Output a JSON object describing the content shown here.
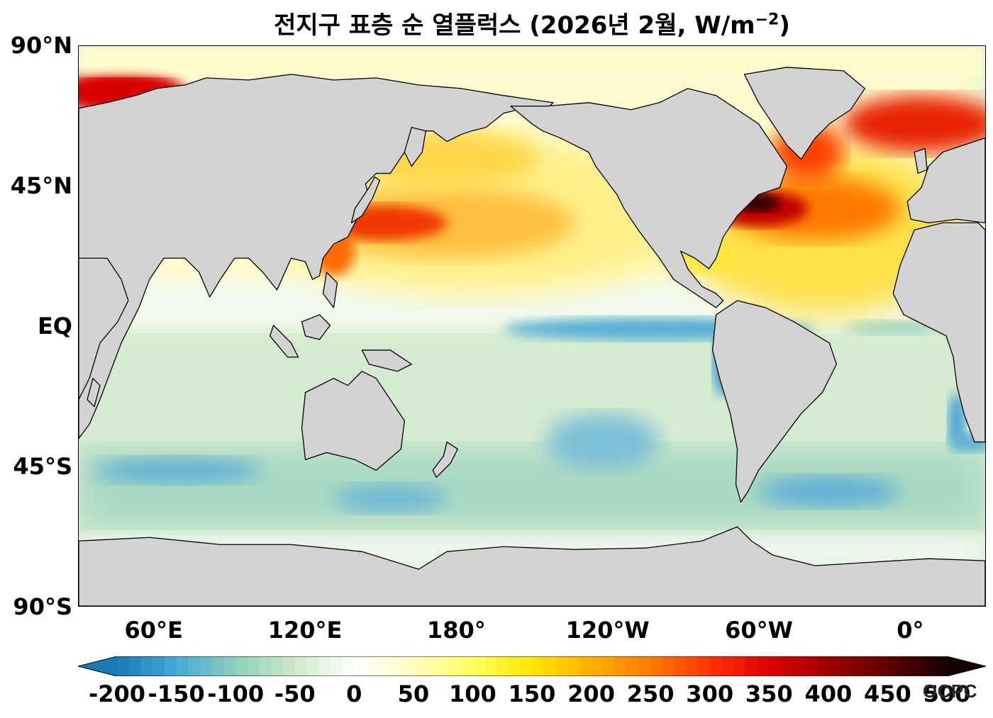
{
  "title": {
    "main": "전지구 표층 순 열플럭스 (2026년 2월, W/m",
    "superscript": "−2",
    "close": ")"
  },
  "map": {
    "projection": "equirectangular",
    "central_longitude": "160°E (Pacific-centered)",
    "land_color": "#d3d3d3",
    "coastline_color": "#000000"
  },
  "lat_ticks": [
    {
      "label": "90°N",
      "lat": 90
    },
    {
      "label": "45°N",
      "lat": 45
    },
    {
      "label": "EQ",
      "lat": 0
    },
    {
      "label": "45°S",
      "lat": -45
    },
    {
      "label": "90°S",
      "lat": -90
    }
  ],
  "lon_ticks": [
    {
      "label": "60°E",
      "lon": 60
    },
    {
      "label": "120°E",
      "lon": 120
    },
    {
      "label": "180°",
      "lon": 180
    },
    {
      "label": "120°W",
      "lon": 240
    },
    {
      "label": "60°W",
      "lon": 300
    },
    {
      "label": "0°",
      "lon": 360
    }
  ],
  "colorbar": {
    "min": -200,
    "max": 500,
    "extend": "both",
    "ticks": [
      -200,
      -150,
      -100,
      -50,
      0,
      50,
      100,
      150,
      200,
      250,
      300,
      350,
      400,
      450,
      500
    ],
    "tick_labels": [
      "-200",
      "-150",
      "-100",
      "-50",
      "0",
      "50",
      "100",
      "150",
      "200",
      "250",
      "300",
      "350",
      "400",
      "450",
      "500"
    ],
    "colors": {
      "-200": "#1a7ab6",
      "-150": "#46a9d4",
      "-100": "#8fcfbb",
      "-50": "#cfeac8",
      "0": "#ffffff",
      "50": "#fffcc0",
      "100": "#ffff60",
      "150": "#ffe600",
      "200": "#ffb000",
      "250": "#ff7a00",
      "300": "#ff3300",
      "350": "#e00000",
      "400": "#a00000",
      "450": "#600000",
      "500": "#150000"
    }
  },
  "watermark": "OCPC"
}
